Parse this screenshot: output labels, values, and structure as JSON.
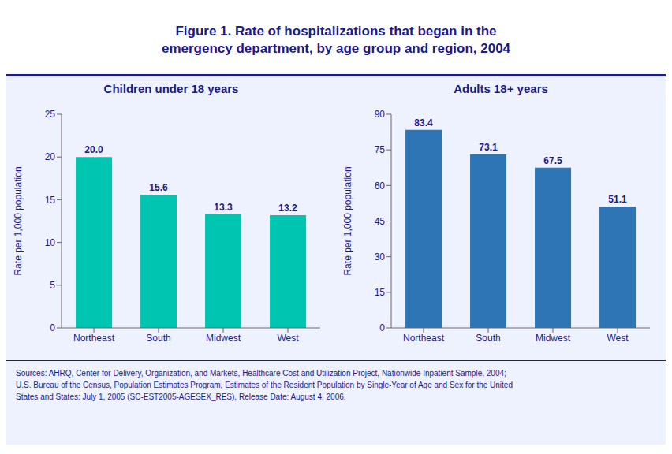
{
  "title": "Figure 1. Rate of hospitalizations that began in the\nemergency department, by age group and region, 2004",
  "source": "Sources: AHRQ, Center for Delivery, Organization, and Markets, Healthcare Cost and Utilization Project, Nationwide Inpatient Sample, 2004;\nU.S. Bureau of the Census, Population Estimates Program, Estimates of the Resident Population by Single-Year of Age and Sex for the United\nStates and States: July 1, 2005 (SC-EST2005-AGESEX_RES), Release Date: August 4, 2006.",
  "chart_data": [
    {
      "type": "bar",
      "title": "Children under 18 years",
      "categories": [
        "Northeast",
        "South",
        "Midwest",
        "West"
      ],
      "values": [
        20.0,
        15.6,
        13.3,
        13.2
      ],
      "value_labels": [
        "20.0",
        "15.6",
        "13.3",
        "13.2"
      ],
      "color": "#00c5b0",
      "ylim": [
        0,
        25
      ],
      "yticks": [
        0,
        5,
        10,
        15,
        20,
        25
      ],
      "ylabel": "Rate per 1,000 population",
      "data_labels": true
    },
    {
      "type": "bar",
      "title": "Adults 18+ years",
      "categories": [
        "Northeast",
        "South",
        "Midwest",
        "West"
      ],
      "values": [
        83.4,
        73.1,
        67.5,
        51.1
      ],
      "color": "#2e75b6",
      "ylim": [
        0,
        90
      ],
      "yticks": [
        0,
        15,
        30,
        45,
        60,
        75,
        90
      ],
      "ylabel": "Rate per 1,000 population",
      "data_labels": true
    }
  ]
}
